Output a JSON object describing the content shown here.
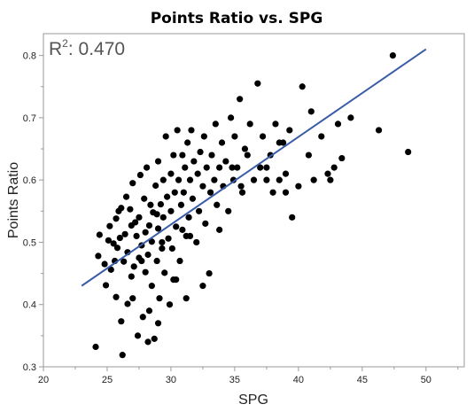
{
  "chart_data": {
    "type": "scatter",
    "title": "Points Ratio vs. SPG",
    "xlabel": "SPG",
    "ylabel": "Points Ratio",
    "xlim": [
      20,
      53
    ],
    "ylim": [
      0.3,
      0.835
    ],
    "xticks": [
      20,
      25,
      30,
      35,
      40,
      45,
      50
    ],
    "xtick_labels": [
      "20",
      "25",
      "30",
      "35",
      "40",
      "45",
      "50"
    ],
    "yticks": [
      0.3,
      0.4,
      0.5,
      0.6,
      0.7,
      0.8
    ],
    "ytick_labels": [
      "0.3",
      "0.4",
      "0.5",
      "0.6",
      "0.7",
      "0.8"
    ],
    "annotation": {
      "r2_prefix": "R",
      "r2_sup": "2",
      "r2_value": ": 0.470"
    },
    "colors": {
      "points": "#000000",
      "fit_line": "#3a5ca8",
      "frame": "#9a9a9a"
    },
    "fit_line": {
      "x": [
        23.0,
        50.0
      ],
      "y": [
        0.43,
        0.81
      ]
    },
    "series": [
      {
        "x": [
          24.1,
          24.3,
          24.4,
          24.8,
          24.9,
          25.1,
          25.2,
          25.3,
          25.5,
          25.6,
          25.7,
          25.7,
          25.8,
          25.9,
          26.0,
          26.1,
          26.2,
          26.3,
          26.4,
          26.5,
          26.6,
          26.6,
          26.8,
          26.9,
          26.9,
          27.0,
          27.1,
          27.2,
          27.3,
          27.4,
          27.5,
          27.5,
          27.6,
          27.7,
          27.8,
          27.9,
          28.0,
          28.0,
          28.1,
          28.2,
          28.2,
          28.3,
          28.4,
          28.5,
          28.5,
          28.6,
          28.7,
          28.8,
          28.9,
          29.0,
          29.0,
          29.1,
          29.2,
          29.3,
          29.4,
          29.4,
          29.5,
          29.6,
          29.7,
          29.8,
          29.9,
          30.0,
          30.0,
          30.1,
          30.2,
          30.3,
          30.4,
          30.5,
          30.6,
          30.7,
          30.8,
          30.9,
          31.0,
          31.1,
          31.2,
          31.3,
          31.4,
          31.5,
          31.6,
          31.7,
          31.8,
          32.0,
          32.1,
          32.2,
          32.3,
          32.5,
          32.6,
          32.7,
          32.8,
          33.0,
          33.1,
          33.2,
          33.4,
          33.5,
          33.6,
          33.8,
          34.0,
          34.1,
          34.3,
          34.5,
          34.7,
          34.9,
          35.0,
          35.2,
          35.4,
          35.6,
          35.8,
          36.0,
          36.2,
          36.5,
          36.8,
          37.0,
          37.2,
          37.5,
          37.8,
          38.0,
          38.2,
          38.5,
          38.8,
          39.0,
          39.3,
          39.5,
          40.0,
          40.3,
          40.8,
          41.2,
          41.8,
          42.3,
          42.8,
          43.1,
          43.4,
          44.1,
          46.3,
          47.4,
          48.6,
          26.1,
          27.0,
          28.3,
          29.3,
          30.2,
          31.2,
          32.5,
          33.8,
          35.5,
          37.5,
          39.0,
          29.0,
          30.9,
          34.8,
          38.5,
          41.0,
          42.5,
          28.9,
          30.4,
          27.7,
          31.5
        ],
        "y": [
          0.332,
          0.478,
          0.512,
          0.465,
          0.431,
          0.503,
          0.526,
          0.456,
          0.498,
          0.47,
          0.538,
          0.412,
          0.491,
          0.55,
          0.507,
          0.373,
          0.319,
          0.469,
          0.513,
          0.573,
          0.401,
          0.484,
          0.553,
          0.527,
          0.445,
          0.595,
          0.461,
          0.532,
          0.51,
          0.35,
          0.54,
          0.475,
          0.608,
          0.495,
          0.38,
          0.57,
          0.452,
          0.516,
          0.62,
          0.48,
          0.34,
          0.527,
          0.56,
          0.43,
          0.501,
          0.548,
          0.345,
          0.591,
          0.47,
          0.522,
          0.63,
          0.41,
          0.561,
          0.49,
          0.6,
          0.54,
          0.451,
          0.67,
          0.573,
          0.506,
          0.4,
          0.61,
          0.55,
          0.49,
          0.64,
          0.58,
          0.525,
          0.68,
          0.6,
          0.47,
          0.56,
          0.64,
          0.58,
          0.62,
          0.51,
          0.66,
          0.54,
          0.6,
          0.68,
          0.57,
          0.63,
          0.5,
          0.61,
          0.55,
          0.645,
          0.59,
          0.67,
          0.53,
          0.62,
          0.45,
          0.58,
          0.64,
          0.6,
          0.69,
          0.56,
          0.62,
          0.66,
          0.59,
          0.63,
          0.55,
          0.7,
          0.6,
          0.67,
          0.62,
          0.73,
          0.58,
          0.65,
          0.64,
          0.69,
          0.6,
          0.755,
          0.62,
          0.67,
          0.6,
          0.64,
          0.58,
          0.69,
          0.6,
          0.66,
          0.61,
          0.68,
          0.54,
          0.59,
          0.75,
          0.64,
          0.6,
          0.67,
          0.61,
          0.62,
          0.69,
          0.635,
          0.7,
          0.68,
          0.8,
          0.645,
          0.555,
          0.41,
          0.39,
          0.5,
          0.44,
          0.41,
          0.43,
          0.52,
          0.59,
          0.62,
          0.58,
          0.37,
          0.52,
          0.62,
          0.66,
          0.71,
          0.6,
          0.545,
          0.44,
          0.47,
          0.51
        ]
      }
    ]
  }
}
